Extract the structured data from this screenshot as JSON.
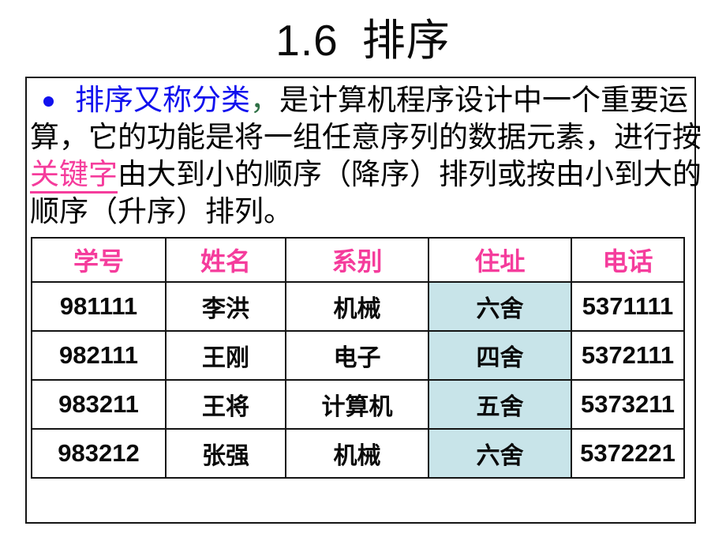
{
  "title": {
    "number": "1.6",
    "text": "排序"
  },
  "colors": {
    "accent_blue": "#1111ee",
    "accent_pink": "#f53c9c",
    "accent_green": "#2e7045",
    "highlight_cyan": "#c8e4e9",
    "border_black": "#141414"
  },
  "paragraph": {
    "bullet": "•",
    "lines": [
      [
        {
          "text": "排序又称分类",
          "color": "blue"
        },
        {
          "text": "，",
          "color": "green"
        },
        {
          "text": "是计算机程序设计中一个重要运",
          "color": "black"
        }
      ],
      [
        {
          "text": "算，它的功能是将一组任意序列的数据元素，进行按",
          "color": "black"
        }
      ],
      [
        {
          "text": "关键字",
          "color": "pink",
          "underline": true
        },
        {
          "text": "由大到小的顺序（降序）排列或按由小到大的",
          "color": "black"
        }
      ],
      [
        {
          "text": "顺序（升序）排列。",
          "color": "black"
        }
      ]
    ]
  },
  "table": {
    "headers": [
      "学号",
      "姓名",
      "系别",
      "住址",
      "电话"
    ],
    "highlight_column_index": 3,
    "numeric_column_indexes": [
      0,
      4
    ],
    "rows": [
      [
        "981111",
        "李洪",
        "机械",
        "六舍",
        "5371111"
      ],
      [
        "982111",
        "王刚",
        "电子",
        "四舍",
        "5372111"
      ],
      [
        "983211",
        "王将",
        "计算机",
        "五舍",
        "5373211"
      ],
      [
        "983212",
        "张强",
        "机械",
        "六舍",
        "5372221"
      ]
    ]
  }
}
